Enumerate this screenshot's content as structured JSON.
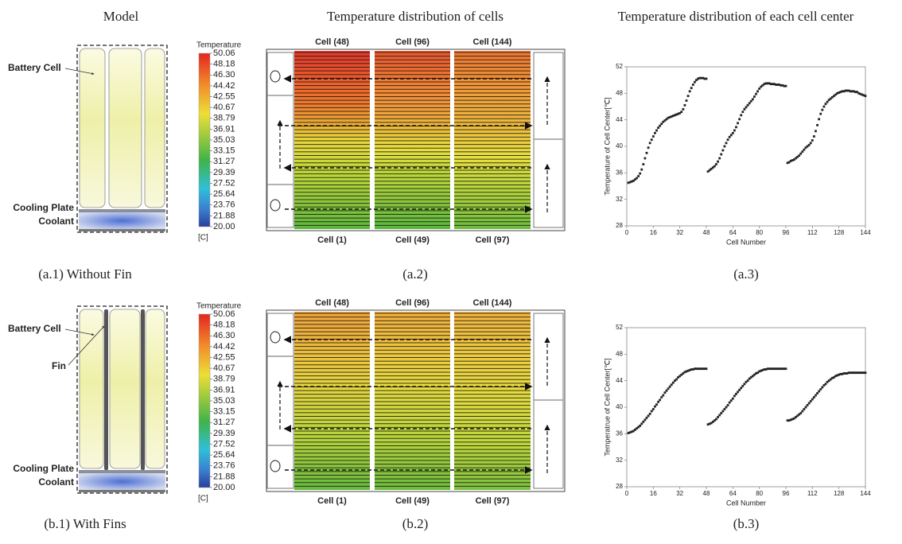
{
  "headers": [
    "Model",
    "Temperature distribution of cells",
    "Temperature distribution of each cell center"
  ],
  "rows": [
    {
      "model": {
        "battery_cell": "Battery Cell",
        "cooling_plate": "Cooling Plate",
        "coolant": "Coolant",
        "caption": "(a.1) Without Fin"
      },
      "colorbar": {
        "title": "Temperature",
        "unit": "[C]",
        "ticks": [
          50.06,
          48.18,
          {
            "value": 46.3,
            "label": "46.30"
          },
          44.42,
          42.55,
          40.67,
          38.79,
          36.91,
          35.03,
          33.15,
          31.27,
          29.39,
          27.52,
          25.64,
          23.76,
          21.88,
          {
            "value": 20,
            "label": "20.00"
          }
        ]
      },
      "map": {
        "top_labels": [
          "Cell (48)",
          "Cell (96)",
          "Cell (144)"
        ],
        "bottom_labels": [
          "Cell (1)",
          "Cell (49)",
          "Cell (97)"
        ],
        "caption": "(a.2)"
      },
      "plot_caption": "(a.3)"
    },
    {
      "model": {
        "battery_cell": "Battery Cell",
        "fin": "Fin",
        "cooling_plate": "Cooling Plate",
        "coolant": "Coolant",
        "caption": "(b.1) With Fins"
      },
      "colorbar": {
        "title": "Temperature",
        "unit": "[C]",
        "ticks": [
          50.06,
          48.18,
          {
            "value": 46.3,
            "label": "46.30"
          },
          44.42,
          42.55,
          40.67,
          38.79,
          36.91,
          35.03,
          33.15,
          31.27,
          29.39,
          27.52,
          25.64,
          23.76,
          21.88,
          {
            "value": 20,
            "label": "20.00"
          }
        ]
      },
      "map": {
        "top_labels": [
          "Cell (48)",
          "Cell (96)",
          "Cell (144)"
        ],
        "bottom_labels": [
          "Cell (1)",
          "Cell (49)",
          "Cell (97)"
        ],
        "caption": "(b.2)"
      },
      "plot_caption": "(b.3)"
    }
  ],
  "chart_data": [
    {
      "type": "scatter",
      "xlabel": "Cell Number",
      "ylabel": "Temperature of Cell Center[℃]",
      "color": "#222222",
      "xlim": [
        0,
        144
      ],
      "ylim": [
        28,
        52
      ],
      "xticks": [
        0,
        16,
        32,
        48,
        64,
        80,
        96,
        112,
        128,
        144
      ],
      "yticks": [
        28,
        32,
        36,
        40,
        44,
        48,
        52
      ],
      "x": [
        1,
        2,
        3,
        4,
        5,
        6,
        7,
        8,
        9,
        10,
        11,
        12,
        13,
        14,
        15,
        16,
        17,
        18,
        19,
        20,
        21,
        22,
        23,
        24,
        25,
        26,
        27,
        28,
        29,
        30,
        31,
        32,
        33,
        34,
        35,
        36,
        37,
        38,
        39,
        40,
        41,
        42,
        43,
        44,
        45,
        46,
        47,
        48,
        49,
        50,
        51,
        52,
        53,
        54,
        55,
        56,
        57,
        58,
        59,
        60,
        61,
        62,
        63,
        64,
        65,
        66,
        67,
        68,
        69,
        70,
        71,
        72,
        73,
        74,
        75,
        76,
        77,
        78,
        79,
        80,
        81,
        82,
        83,
        84,
        85,
        86,
        87,
        88,
        89,
        90,
        91,
        92,
        93,
        94,
        95,
        96,
        97,
        98,
        99,
        100,
        101,
        102,
        103,
        104,
        105,
        106,
        107,
        108,
        109,
        110,
        111,
        112,
        113,
        114,
        115,
        116,
        117,
        118,
        119,
        120,
        121,
        122,
        123,
        124,
        125,
        126,
        127,
        128,
        129,
        130,
        131,
        132,
        133,
        134,
        135,
        136,
        137,
        138,
        139,
        140,
        141,
        142,
        143,
        144
      ],
      "values": [
        34.5,
        34.6,
        34.7,
        34.8,
        35.0,
        35.2,
        35.5,
        35.9,
        36.5,
        37.3,
        38.2,
        39.0,
        39.8,
        40.5,
        41.0,
        41.5,
        42.0,
        42.4,
        42.8,
        43.1,
        43.4,
        43.7,
        43.9,
        44.1,
        44.3,
        44.4,
        44.5,
        44.6,
        44.7,
        44.8,
        44.9,
        45.0,
        45.2,
        45.6,
        46.2,
        46.9,
        47.6,
        48.3,
        48.8,
        49.3,
        49.7,
        50.0,
        50.2,
        50.3,
        50.3,
        50.3,
        50.2,
        50.2,
        36.2,
        36.4,
        36.6,
        36.8,
        37.0,
        37.3,
        37.7,
        38.2,
        38.8,
        39.4,
        40.0,
        40.5,
        41.0,
        41.4,
        41.7,
        42.0,
        42.4,
        42.9,
        43.5,
        44.1,
        44.7,
        45.2,
        45.6,
        45.9,
        46.2,
        46.5,
        46.8,
        47.1,
        47.5,
        47.9,
        48.3,
        48.7,
        49.0,
        49.2,
        49.4,
        49.5,
        49.5,
        49.5,
        49.4,
        49.4,
        49.4,
        49.3,
        49.3,
        49.3,
        49.2,
        49.2,
        49.1,
        49.1,
        37.5,
        37.6,
        37.8,
        37.9,
        38.0,
        38.2,
        38.4,
        38.6,
        38.9,
        39.2,
        39.5,
        39.8,
        40.0,
        40.2,
        40.5,
        40.9,
        41.5,
        42.3,
        43.2,
        44.1,
        44.9,
        45.5,
        46.0,
        46.4,
        46.7,
        47.0,
        47.2,
        47.4,
        47.6,
        47.8,
        48.0,
        48.1,
        48.2,
        48.3,
        48.3,
        48.4,
        48.4,
        48.4,
        48.3,
        48.3,
        48.3,
        48.2,
        48.2,
        48.0,
        47.9,
        47.8,
        47.7,
        47.6
      ]
    },
    {
      "type": "scatter",
      "xlabel": "Cell Number",
      "ylabel": "Temperatrue of Cell Center[℃]",
      "color": "#222222",
      "xlim": [
        0,
        144
      ],
      "ylim": [
        28,
        52
      ],
      "xticks": [
        0,
        16,
        32,
        48,
        64,
        80,
        96,
        112,
        128,
        144
      ],
      "yticks": [
        28,
        32,
        36,
        40,
        44,
        48,
        52
      ],
      "x": [
        1,
        2,
        3,
        4,
        5,
        6,
        7,
        8,
        9,
        10,
        11,
        12,
        13,
        14,
        15,
        16,
        17,
        18,
        19,
        20,
        21,
        22,
        23,
        24,
        25,
        26,
        27,
        28,
        29,
        30,
        31,
        32,
        33,
        34,
        35,
        36,
        37,
        38,
        39,
        40,
        41,
        42,
        43,
        44,
        45,
        46,
        47,
        48,
        49,
        50,
        51,
        52,
        53,
        54,
        55,
        56,
        57,
        58,
        59,
        60,
        61,
        62,
        63,
        64,
        65,
        66,
        67,
        68,
        69,
        70,
        71,
        72,
        73,
        74,
        75,
        76,
        77,
        78,
        79,
        80,
        81,
        82,
        83,
        84,
        85,
        86,
        87,
        88,
        89,
        90,
        91,
        92,
        93,
        94,
        95,
        96,
        97,
        98,
        99,
        100,
        101,
        102,
        103,
        104,
        105,
        106,
        107,
        108,
        109,
        110,
        111,
        112,
        113,
        114,
        115,
        116,
        117,
        118,
        119,
        120,
        121,
        122,
        123,
        124,
        125,
        126,
        127,
        128,
        129,
        130,
        131,
        132,
        133,
        134,
        135,
        136,
        137,
        138,
        139,
        140,
        141,
        142,
        143,
        144
      ],
      "values": [
        36.1,
        36.2,
        36.3,
        36.4,
        36.6,
        36.8,
        37.0,
        37.2,
        37.5,
        37.8,
        38.1,
        38.4,
        38.7,
        39.0,
        39.4,
        39.7,
        40.1,
        40.4,
        40.8,
        41.1,
        41.5,
        41.8,
        42.2,
        42.5,
        42.8,
        43.1,
        43.4,
        43.7,
        44.0,
        44.2,
        44.5,
        44.7,
        44.9,
        45.1,
        45.3,
        45.4,
        45.5,
        45.6,
        45.7,
        45.7,
        45.8,
        45.8,
        45.8,
        45.8,
        45.8,
        45.8,
        45.8,
        45.8,
        37.4,
        37.5,
        37.6,
        37.8,
        38.0,
        38.2,
        38.5,
        38.8,
        39.1,
        39.4,
        39.7,
        40.0,
        40.3,
        40.7,
        41.0,
        41.3,
        41.7,
        42.0,
        42.3,
        42.6,
        42.9,
        43.2,
        43.5,
        43.8,
        44.0,
        44.3,
        44.5,
        44.7,
        44.9,
        45.1,
        45.2,
        45.4,
        45.5,
        45.6,
        45.7,
        45.7,
        45.8,
        45.8,
        45.8,
        45.8,
        45.8,
        45.8,
        45.8,
        45.8,
        45.8,
        45.8,
        45.8,
        45.8,
        38.0,
        38.0,
        38.1,
        38.2,
        38.3,
        38.5,
        38.7,
        38.9,
        39.1,
        39.4,
        39.7,
        40.0,
        40.3,
        40.6,
        40.9,
        41.2,
        41.5,
        41.8,
        42.1,
        42.4,
        42.7,
        43.0,
        43.3,
        43.5,
        43.8,
        44.0,
        44.2,
        44.4,
        44.5,
        44.7,
        44.8,
        44.9,
        45.0,
        45.0,
        45.1,
        45.1,
        45.1,
        45.2,
        45.2,
        45.2,
        45.2,
        45.2,
        45.2,
        45.2,
        45.2,
        45.2,
        45.2,
        45.2
      ]
    }
  ]
}
